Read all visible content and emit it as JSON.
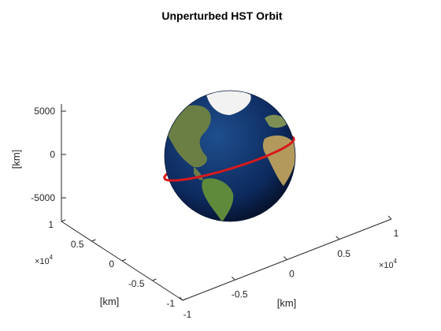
{
  "chart_data": {
    "type": "3d-surface-line",
    "title": "Unperturbed HST Orbit",
    "axes": {
      "x": {
        "label": "[km]",
        "ticks": [
          "-1",
          "-0.5",
          "0",
          "0.5",
          "1"
        ],
        "multiplier": "×10",
        "multiplier_exp": "4",
        "range": [
          -10000,
          10000
        ]
      },
      "y": {
        "label": "[km]",
        "ticks": [
          "-1",
          "-0.5",
          "0",
          "0.5",
          "1"
        ],
        "multiplier": "×10",
        "multiplier_exp": "4",
        "range": [
          -10000,
          10000
        ]
      },
      "z": {
        "label": "[km]",
        "ticks": [
          "-5000",
          "0",
          "5000"
        ],
        "range": [
          -6500,
          6500
        ]
      }
    },
    "grid": false,
    "objects": [
      {
        "name": "earth-globe",
        "kind": "sphere",
        "radius_km": 6371,
        "texture": "earth"
      },
      {
        "name": "hst-orbit",
        "kind": "line",
        "color": "#d7191c",
        "altitude_km": 540,
        "inclination_deg": 28.5
      }
    ],
    "colors": {
      "orbit": "#d7191c",
      "ocean": "#0d2a5e",
      "land": "#5a7a3a",
      "ice": "#f4f4f4"
    }
  }
}
